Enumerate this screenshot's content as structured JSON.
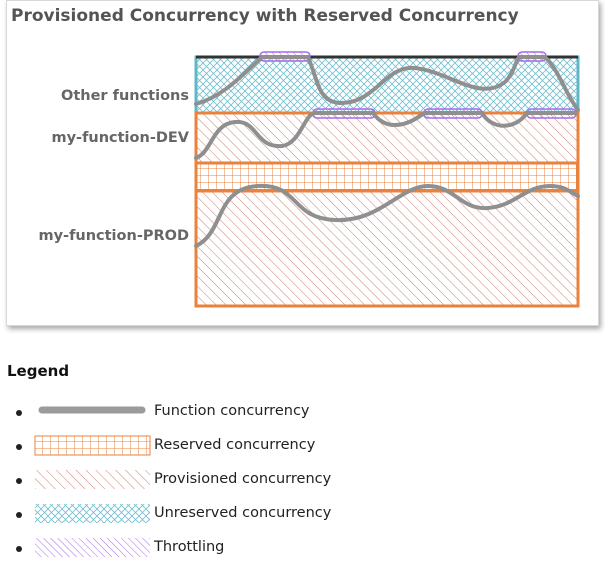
{
  "figure": {
    "title": "Provisioned Concurrency with Reserved Concurrency",
    "rows": [
      {
        "label": "Other functions"
      },
      {
        "label": "my-function-DEV"
      },
      {
        "label": "my-function-PROD"
      }
    ]
  },
  "legend": {
    "heading": "Legend",
    "items": [
      {
        "label": "Function concurrency",
        "swatch": "line-icon"
      },
      {
        "label": "Reserved concurrency",
        "swatch": "grid-pattern-icon"
      },
      {
        "label": "Provisioned concurrency",
        "swatch": "diagonal-hatch-icon"
      },
      {
        "label": "Unreserved concurrency",
        "swatch": "crosshatch-icon"
      },
      {
        "label": "Throttling",
        "swatch": "purple-hatch-icon"
      }
    ]
  },
  "colors": {
    "reserved": "#e8823c",
    "provisioned": "#c87e72",
    "unreserved": "#5fb7c9",
    "throttling": "#a66be8",
    "concurrency_line": "#8f8f8f",
    "capacity_top": "#333333"
  }
}
